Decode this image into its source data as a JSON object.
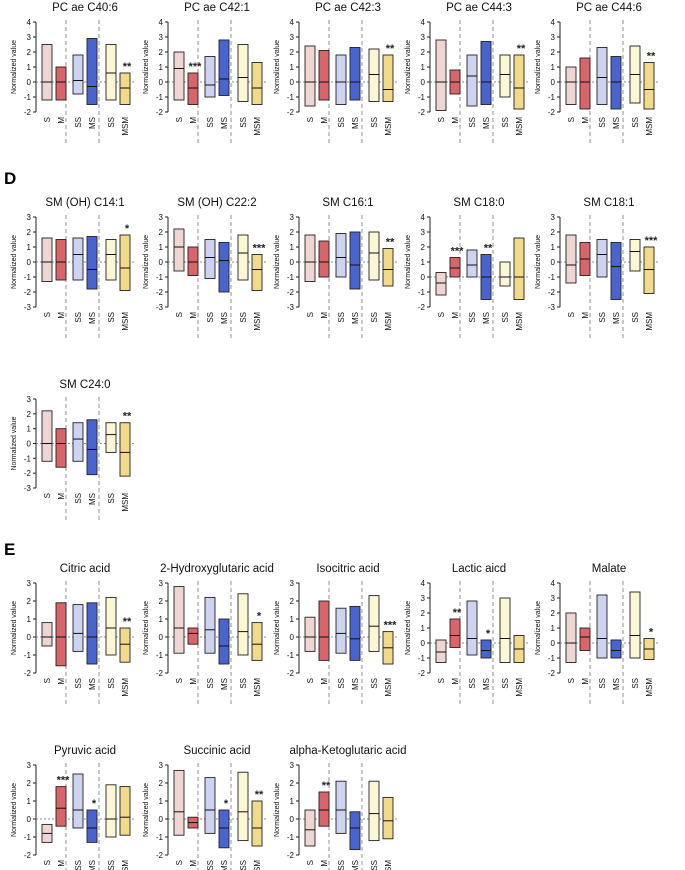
{
  "sections": {
    "D": "D",
    "E": "E"
  },
  "y_axis_label": "Normalized value",
  "group_labels": [
    "S",
    "M",
    "SS",
    "MS",
    "SS",
    "MSM"
  ],
  "colors": {
    "S": {
      "fill": "#efd6d3",
      "stroke": "#222222"
    },
    "M": {
      "fill": "#d9646a",
      "stroke": "#222222"
    },
    "SS": {
      "fill": "#cdd3f0",
      "stroke": "#222222"
    },
    "MS": {
      "fill": "#4a64cf",
      "stroke": "#222222"
    },
    "SS2": {
      "fill": "#fbf6d4",
      "stroke": "#222222"
    },
    "MSM": {
      "fill": "#f3d98a",
      "stroke": "#222222"
    }
  },
  "chart_data": [
    {
      "type": "box",
      "title": "PC ae C40:6",
      "ylim": [
        -2,
        4
      ],
      "yticks": [
        -2,
        -1,
        0,
        1,
        2,
        3,
        4
      ],
      "boxes": [
        {
          "min": -1.2,
          "med": 0,
          "max": 2.5
        },
        {
          "min": -1.2,
          "med": 0,
          "max": 1
        },
        {
          "min": -0.8,
          "med": 0.1,
          "max": 1.8
        },
        {
          "min": -1.5,
          "med": -0.3,
          "max": 2.9
        },
        {
          "min": -1.2,
          "med": 0.6,
          "max": 2.5
        },
        {
          "min": -1.5,
          "med": -0.4,
          "max": 0.6
        }
      ],
      "significance": [
        {
          "box": 5,
          "label": "**"
        }
      ]
    },
    {
      "type": "box",
      "title": "PC ae C42:1",
      "ylim": [
        -2,
        4
      ],
      "yticks": [
        -2,
        -1,
        0,
        1,
        2,
        3,
        4
      ],
      "boxes": [
        {
          "min": -1.2,
          "med": 0.9,
          "max": 2
        },
        {
          "min": -1.5,
          "med": -0.4,
          "max": 0.6
        },
        {
          "min": -1,
          "med": -0.2,
          "max": 1.7
        },
        {
          "min": -0.9,
          "med": 0.2,
          "max": 2.8
        },
        {
          "min": -1.3,
          "med": 0.3,
          "max": 2.5
        },
        {
          "min": -1.5,
          "med": -0.4,
          "max": 1.3
        }
      ],
      "significance": [
        {
          "box": 1,
          "label": "***"
        }
      ]
    },
    {
      "type": "box",
      "title": "PC ae C42:3",
      "ylim": [
        -2,
        4
      ],
      "yticks": [
        -2,
        -1,
        0,
        1,
        2,
        3,
        4
      ],
      "boxes": [
        {
          "min": -1.6,
          "med": 0,
          "max": 2.4
        },
        {
          "min": -1.2,
          "med": 0,
          "max": 2.1
        },
        {
          "min": -1.5,
          "med": 0,
          "max": 1.8
        },
        {
          "min": -1.2,
          "med": 0,
          "max": 2.3
        },
        {
          "min": -1.3,
          "med": 0.5,
          "max": 2.2
        },
        {
          "min": -1.3,
          "med": -0.5,
          "max": 1.8
        }
      ],
      "significance": [
        {
          "box": 5,
          "label": "**"
        }
      ]
    },
    {
      "type": "box",
      "title": "PC ae C44:3",
      "ylim": [
        -2,
        4
      ],
      "yticks": [
        -2,
        -1,
        0,
        1,
        2,
        3,
        4
      ],
      "boxes": [
        {
          "min": -1.9,
          "med": 0,
          "max": 2.8
        },
        {
          "min": -0.8,
          "med": 0,
          "max": 0.8
        },
        {
          "min": -1.6,
          "med": 0.4,
          "max": 1.8
        },
        {
          "min": -1.5,
          "med": 0,
          "max": 2.7
        },
        {
          "min": -1,
          "med": 0.5,
          "max": 1.8
        },
        {
          "min": -1.8,
          "med": -0.4,
          "max": 1.8
        }
      ],
      "significance": [
        {
          "box": 5,
          "label": "**"
        }
      ]
    },
    {
      "type": "box",
      "title": "PC ae C44:6",
      "ylim": [
        -2,
        4
      ],
      "yticks": [
        -2,
        -1,
        0,
        1,
        2,
        3,
        4
      ],
      "boxes": [
        {
          "min": -1.5,
          "med": 0,
          "max": 1
        },
        {
          "min": -1.8,
          "med": 0,
          "max": 1.6
        },
        {
          "min": -1.5,
          "med": 0.3,
          "max": 2.3
        },
        {
          "min": -1.8,
          "med": 0,
          "max": 1.7
        },
        {
          "min": -1.4,
          "med": 0.5,
          "max": 2.4
        },
        {
          "min": -1.8,
          "med": -0.5,
          "max": 1.3
        }
      ],
      "significance": [
        {
          "box": 5,
          "label": "**"
        }
      ]
    },
    {
      "type": "box",
      "title": "SM (OH) C14:1",
      "ylim": [
        -3,
        3
      ],
      "yticks": [
        -3,
        -2,
        -1,
        0,
        1,
        2,
        3
      ],
      "boxes": [
        {
          "min": -1.3,
          "med": 0,
          "max": 1.6
        },
        {
          "min": -1.2,
          "med": 0,
          "max": 1.5
        },
        {
          "min": -1.2,
          "med": 0.5,
          "max": 1.6
        },
        {
          "min": -1.8,
          "med": -0.5,
          "max": 1.7
        },
        {
          "min": -1.2,
          "med": 0.5,
          "max": 1.5
        },
        {
          "min": -1.9,
          "med": -0.4,
          "max": 1.8
        }
      ],
      "significance": [
        {
          "box": 5,
          "label": "*"
        }
      ]
    },
    {
      "type": "box",
      "title": "SM (OH) C22:2",
      "ylim": [
        -3,
        3
      ],
      "yticks": [
        -3,
        -2,
        -1,
        0,
        1,
        2,
        3
      ],
      "boxes": [
        {
          "min": -0.6,
          "med": 1,
          "max": 2.2
        },
        {
          "min": -0.9,
          "med": 0,
          "max": 1
        },
        {
          "min": -1.1,
          "med": 0.3,
          "max": 1.5
        },
        {
          "min": -2,
          "med": 0.1,
          "max": 1.3
        },
        {
          "min": -1.2,
          "med": 0.6,
          "max": 1.8
        },
        {
          "min": -1.9,
          "med": -0.5,
          "max": 0.5
        }
      ],
      "significance": [
        {
          "box": 5,
          "label": "***"
        }
      ]
    },
    {
      "type": "box",
      "title": "SM C16:1",
      "ylim": [
        -3,
        3
      ],
      "yticks": [
        -3,
        -2,
        -1,
        0,
        1,
        2,
        3
      ],
      "boxes": [
        {
          "min": -1.3,
          "med": 0,
          "max": 1.8
        },
        {
          "min": -1,
          "med": 0,
          "max": 1.4
        },
        {
          "min": -1,
          "med": 0.3,
          "max": 1.9
        },
        {
          "min": -1.8,
          "med": -0.2,
          "max": 2
        },
        {
          "min": -1.2,
          "med": 0.6,
          "max": 2
        },
        {
          "min": -1.6,
          "med": -0.5,
          "max": 0.9
        }
      ],
      "significance": [
        {
          "box": 5,
          "label": "**"
        }
      ]
    },
    {
      "type": "box",
      "title": "SM C18:0",
      "ylim": [
        -2,
        4
      ],
      "yticks": [
        -2,
        -1,
        0,
        1,
        2,
        3,
        4
      ],
      "boxes": [
        {
          "min": -1.2,
          "med": -0.4,
          "max": 0.3
        },
        {
          "min": 0,
          "med": 0.6,
          "max": 1.3
        },
        {
          "min": 0,
          "med": 0.8,
          "max": 1.8
        },
        {
          "min": -1.5,
          "med": 0,
          "max": 1.5
        },
        {
          "min": -0.6,
          "med": 0,
          "max": 1
        },
        {
          "min": -1.5,
          "med": 0,
          "max": 2.6
        }
      ],
      "significance": [
        {
          "box": 1,
          "label": "***"
        },
        {
          "box": 3,
          "label": "**"
        }
      ]
    },
    {
      "type": "box",
      "title": "SM C18:1",
      "ylim": [
        -3,
        3
      ],
      "yticks": [
        -3,
        -2,
        -1,
        0,
        1,
        2,
        3
      ],
      "boxes": [
        {
          "min": -1.4,
          "med": -0.2,
          "max": 1.8
        },
        {
          "min": -0.9,
          "med": 0.2,
          "max": 1.3
        },
        {
          "min": -1,
          "med": 0.5,
          "max": 1.5
        },
        {
          "min": -2.5,
          "med": -0.3,
          "max": 1.3
        },
        {
          "min": -0.6,
          "med": 0.7,
          "max": 1.5
        },
        {
          "min": -2.1,
          "med": -0.5,
          "max": 1
        }
      ],
      "significance": [
        {
          "box": 5,
          "label": "***"
        }
      ]
    },
    {
      "type": "box",
      "title": "SM C24:0",
      "ylim": [
        -3,
        3
      ],
      "yticks": [
        -3,
        -2,
        -1,
        0,
        1,
        2,
        3
      ],
      "boxes": [
        {
          "min": -1.2,
          "med": 0,
          "max": 2.2
        },
        {
          "min": -1.6,
          "med": 0,
          "max": 1
        },
        {
          "min": -1.2,
          "med": 0.3,
          "max": 1.4
        },
        {
          "min": -2.1,
          "med": -0.4,
          "max": 1.6
        },
        {
          "min": -0.6,
          "med": 0.6,
          "max": 1.4
        },
        {
          "min": -2.2,
          "med": -0.6,
          "max": 1.4
        }
      ],
      "significance": [
        {
          "box": 5,
          "label": "**"
        }
      ]
    },
    {
      "type": "box",
      "title": "Citric acid",
      "ylim": [
        -2,
        3
      ],
      "yticks": [
        -2,
        -1,
        0,
        1,
        2,
        3
      ],
      "boxes": [
        {
          "min": -0.5,
          "med": 0,
          "max": 0.8
        },
        {
          "min": -1.6,
          "med": 0,
          "max": 1.9
        },
        {
          "min": -0.8,
          "med": 0.2,
          "max": 1.8
        },
        {
          "min": -1.5,
          "med": 0,
          "max": 1.9
        },
        {
          "min": -1,
          "med": 0.5,
          "max": 2.2
        },
        {
          "min": -1.4,
          "med": -0.4,
          "max": 0.5
        }
      ],
      "significance": [
        {
          "box": 5,
          "label": "**"
        }
      ]
    },
    {
      "type": "box",
      "title": "2-Hydroxyglutaric acid",
      "ylim": [
        -2,
        3
      ],
      "yticks": [
        -2,
        -1,
        0,
        1,
        2,
        3
      ],
      "boxes": [
        {
          "min": -0.9,
          "med": 0.5,
          "max": 2.8
        },
        {
          "min": -0.4,
          "med": 0.2,
          "max": 0.5
        },
        {
          "min": -0.9,
          "med": 0.4,
          "max": 2.2
        },
        {
          "min": -1.5,
          "med": -0.5,
          "max": 1
        },
        {
          "min": -1,
          "med": 0.3,
          "max": 2.4
        },
        {
          "min": -1.3,
          "med": -0.4,
          "max": 0.8
        }
      ],
      "significance": [
        {
          "box": 5,
          "label": "*"
        }
      ]
    },
    {
      "type": "box",
      "title": "Isocitric acid",
      "ylim": [
        -2,
        3
      ],
      "yticks": [
        -2,
        -1,
        0,
        1,
        2,
        3
      ],
      "boxes": [
        {
          "min": -0.8,
          "med": 0,
          "max": 1.1
        },
        {
          "min": -1.3,
          "med": 0,
          "max": 2
        },
        {
          "min": -0.9,
          "med": 0.2,
          "max": 1.6
        },
        {
          "min": -1.3,
          "med": -0.1,
          "max": 1.7
        },
        {
          "min": -0.8,
          "med": 0.6,
          "max": 2.3
        },
        {
          "min": -1.5,
          "med": -0.6,
          "max": 0.3
        }
      ],
      "significance": [
        {
          "box": 5,
          "label": "***"
        }
      ]
    },
    {
      "type": "box",
      "title": "Lactic aicd",
      "ylim": [
        -2,
        4
      ],
      "yticks": [
        -2,
        -1,
        0,
        1,
        2,
        3,
        4
      ],
      "boxes": [
        {
          "min": -1.3,
          "med": -0.6,
          "max": 0.2
        },
        {
          "min": -0.3,
          "med": 0.5,
          "max": 1.6
        },
        {
          "min": -0.8,
          "med": 0.3,
          "max": 2.8
        },
        {
          "min": -1,
          "med": -0.5,
          "max": 0.2
        },
        {
          "min": -1.3,
          "med": 0.3,
          "max": 3
        },
        {
          "min": -1.3,
          "med": -0.4,
          "max": 0.5
        }
      ],
      "significance": [
        {
          "box": 1,
          "label": "**"
        },
        {
          "box": 3,
          "label": "*"
        }
      ]
    },
    {
      "type": "box",
      "title": "Malate",
      "ylim": [
        -2,
        4
      ],
      "yticks": [
        -2,
        -1,
        0,
        1,
        2,
        3,
        4
      ],
      "boxes": [
        {
          "min": -1.3,
          "med": 0,
          "max": 2
        },
        {
          "min": -0.5,
          "med": 0.4,
          "max": 1
        },
        {
          "min": -1,
          "med": 0.3,
          "max": 3.2
        },
        {
          "min": -1,
          "med": -0.5,
          "max": 0.2
        },
        {
          "min": -1,
          "med": 0.5,
          "max": 3.4
        },
        {
          "min": -1.1,
          "med": -0.4,
          "max": 0.3
        }
      ],
      "significance": [
        {
          "box": 5,
          "label": "*"
        }
      ]
    },
    {
      "type": "box",
      "title": "Pyruvic acid",
      "ylim": [
        -2,
        3
      ],
      "yticks": [
        -2,
        -1,
        0,
        1,
        2,
        3
      ],
      "boxes": [
        {
          "min": -1.3,
          "med": -0.8,
          "max": -0.3
        },
        {
          "min": -0.4,
          "med": 0.6,
          "max": 1.8
        },
        {
          "min": -0.5,
          "med": 0.5,
          "max": 2.5
        },
        {
          "min": -1.3,
          "med": -0.5,
          "max": 0.5
        },
        {
          "min": -1,
          "med": 0,
          "max": 1.9
        },
        {
          "min": -0.9,
          "med": 0.1,
          "max": 1.8
        }
      ],
      "significance": [
        {
          "box": 1,
          "label": "***"
        },
        {
          "box": 3,
          "label": "*"
        }
      ]
    },
    {
      "type": "box",
      "title": "Succinic acid",
      "ylim": [
        -2,
        3
      ],
      "yticks": [
        -2,
        -1,
        0,
        1,
        2,
        3
      ],
      "boxes": [
        {
          "min": -0.9,
          "med": 0.4,
          "max": 2.7
        },
        {
          "min": -0.5,
          "med": -0.2,
          "max": 0.1
        },
        {
          "min": -0.8,
          "med": 0.5,
          "max": 2.3
        },
        {
          "min": -1.6,
          "med": -0.5,
          "max": 0.5
        },
        {
          "min": -1.2,
          "med": 0.4,
          "max": 2.6
        },
        {
          "min": -1.5,
          "med": -0.5,
          "max": 1
        }
      ],
      "significance": [
        {
          "box": 3,
          "label": "*"
        },
        {
          "box": 5,
          "label": "**"
        }
      ]
    },
    {
      "type": "box",
      "title": "alpha-Ketoglutaric acid",
      "ylim": [
        -2,
        3
      ],
      "yticks": [
        -2,
        -1,
        0,
        1,
        2,
        3
      ],
      "boxes": [
        {
          "min": -1.5,
          "med": -0.6,
          "max": 0.5
        },
        {
          "min": -0.4,
          "med": 0.5,
          "max": 1.5
        },
        {
          "min": -0.8,
          "med": 0.5,
          "max": 2.1
        },
        {
          "min": -1.7,
          "med": -0.5,
          "max": 0.4
        },
        {
          "min": -1.2,
          "med": 0.3,
          "max": 2.1
        },
        {
          "min": -1.1,
          "med": -0.1,
          "max": 1.2
        }
      ],
      "significance": [
        {
          "box": 1,
          "label": "**"
        }
      ]
    }
  ]
}
